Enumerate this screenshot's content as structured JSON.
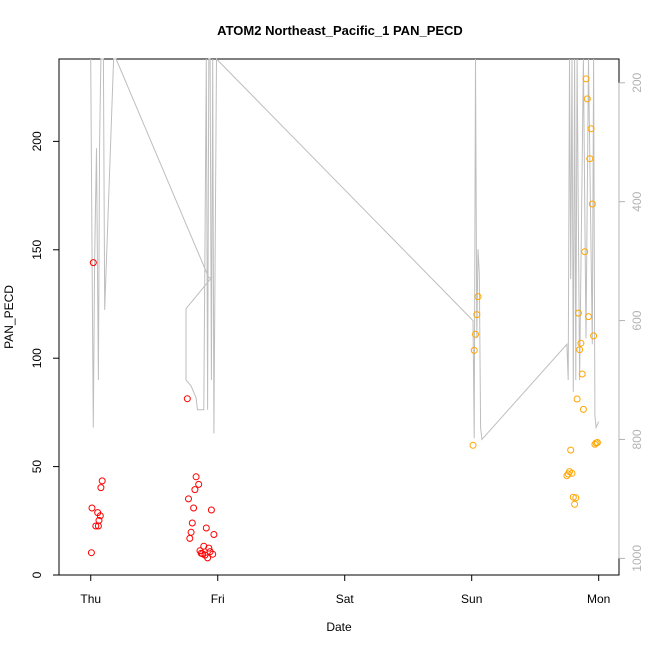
{
  "chart_data": {
    "type": "scatter",
    "title": "ATOM2 Northeast_Pacific_1 PAN_PECD",
    "xlabel": "Date",
    "ylabel": "PAN_PECD",
    "x_ticks": [
      "Thu",
      "Fri",
      "Sat",
      "Sun",
      "Mon"
    ],
    "xlim_days": [
      -0.25,
      4.16
    ],
    "ylim": [
      0,
      238
    ],
    "y_ticks": [
      0,
      50,
      100,
      150,
      200
    ],
    "right_axis": {
      "label": "",
      "reversed": true,
      "ylim": [
        1028,
        160
      ],
      "ticks": [
        200,
        400,
        600,
        800,
        1000
      ],
      "color": "#b3b3b3"
    },
    "grid": false,
    "legend": "none",
    "colors": {
      "red": "#ff0000",
      "orange": "#ffa500",
      "gray": "#bebebe"
    },
    "series": [
      {
        "color": "red",
        "marker": "open-circle",
        "points": [
          [
            0.005,
            10.3
          ],
          [
            0.01,
            30.9
          ],
          [
            0.02,
            144.1
          ],
          [
            0.04,
            22.6
          ],
          [
            0.055,
            28.8
          ],
          [
            0.06,
            22.6
          ],
          [
            0.065,
            25.2
          ],
          [
            0.075,
            27.3
          ],
          [
            0.08,
            40.3
          ],
          [
            0.09,
            43.4
          ],
          [
            0.76,
            81.3
          ],
          [
            0.77,
            35.1
          ],
          [
            0.78,
            16.9
          ],
          [
            0.79,
            19.7
          ],
          [
            0.8,
            24.0
          ],
          [
            0.81,
            30.9
          ],
          [
            0.82,
            39.4
          ],
          [
            0.83,
            45.3
          ],
          [
            0.85,
            41.8
          ],
          [
            0.86,
            11.2
          ],
          [
            0.87,
            10.0
          ],
          [
            0.88,
            9.8
          ],
          [
            0.89,
            13.3
          ],
          [
            0.9,
            9.2
          ],
          [
            0.91,
            21.7
          ],
          [
            0.92,
            7.9
          ],
          [
            0.93,
            12.4
          ],
          [
            0.94,
            10.8
          ],
          [
            0.95,
            30.0
          ],
          [
            0.96,
            9.6
          ],
          [
            0.97,
            18.7
          ]
        ]
      },
      {
        "color": "orange",
        "marker": "open-circle",
        "points": [
          [
            3.01,
            59.8
          ],
          [
            3.02,
            103.6
          ],
          [
            3.03,
            111.0
          ],
          [
            3.04,
            120.1
          ],
          [
            3.05,
            128.4
          ],
          [
            3.75,
            45.8
          ],
          [
            3.76,
            46.6
          ],
          [
            3.77,
            47.7
          ],
          [
            3.78,
            57.6
          ],
          [
            3.79,
            46.9
          ],
          [
            3.8,
            35.9
          ],
          [
            3.81,
            32.6
          ],
          [
            3.82,
            35.6
          ],
          [
            3.83,
            81.2
          ],
          [
            3.84,
            120.8
          ],
          [
            3.85,
            103.9
          ],
          [
            3.86,
            106.9
          ],
          [
            3.87,
            92.7
          ],
          [
            3.88,
            76.4
          ],
          [
            3.89,
            149.1
          ],
          [
            3.9,
            228.8
          ],
          [
            3.91,
            219.6
          ],
          [
            3.92,
            119.2
          ],
          [
            3.93,
            192.0
          ],
          [
            3.94,
            205.8
          ],
          [
            3.95,
            171.1
          ],
          [
            3.96,
            110.3
          ],
          [
            3.97,
            60.3
          ],
          [
            3.98,
            60.9
          ],
          [
            3.99,
            61.1
          ]
        ]
      },
      {
        "color": "gray",
        "type": "line",
        "axis": "right",
        "points": [
          [
            0,
            160
          ],
          [
            0.01,
            480
          ],
          [
            0.02,
            780
          ],
          [
            0.03,
            500
          ],
          [
            0.045,
            310
          ],
          [
            0.06,
            700
          ],
          [
            0.07,
            300
          ],
          [
            0.08,
            160
          ],
          [
            0.1,
            160
          ],
          [
            0.11,
            582
          ],
          [
            0.18,
            160
          ],
          [
            0.2,
            160
          ],
          [
            0.93,
            528
          ],
          [
            0.95,
            528
          ],
          [
            0.75,
            580
          ],
          [
            0.75,
            700
          ],
          [
            0.79,
            710
          ],
          [
            0.83,
            730
          ],
          [
            0.84,
            750
          ],
          [
            0.89,
            750
          ],
          [
            0.91,
            160
          ],
          [
            0.92,
            750
          ],
          [
            0.93,
            160
          ],
          [
            0.94,
            160
          ],
          [
            0.95,
            700
          ],
          [
            0.96,
            160
          ],
          [
            0.97,
            790
          ],
          [
            0.99,
            160
          ],
          [
            3.01,
            600
          ],
          [
            3.02,
            798
          ],
          [
            3.03,
            160
          ],
          [
            3.04,
            630
          ],
          [
            3.05,
            480
          ],
          [
            3.06,
            520
          ],
          [
            3.07,
            780
          ],
          [
            3.08,
            800
          ],
          [
            3.75,
            640
          ],
          [
            3.76,
            700
          ],
          [
            3.77,
            160
          ],
          [
            3.78,
            530
          ],
          [
            3.79,
            160
          ],
          [
            3.8,
            720
          ],
          [
            3.81,
            160
          ],
          [
            3.82,
            700
          ],
          [
            3.83,
            160
          ],
          [
            3.85,
            700
          ],
          [
            3.88,
            160
          ],
          [
            3.9,
            630
          ],
          [
            3.92,
            160
          ],
          [
            3.95,
            640
          ],
          [
            3.96,
            160
          ],
          [
            3.97,
            760
          ],
          [
            3.98,
            780
          ],
          [
            4.0,
            770
          ]
        ]
      }
    ]
  }
}
